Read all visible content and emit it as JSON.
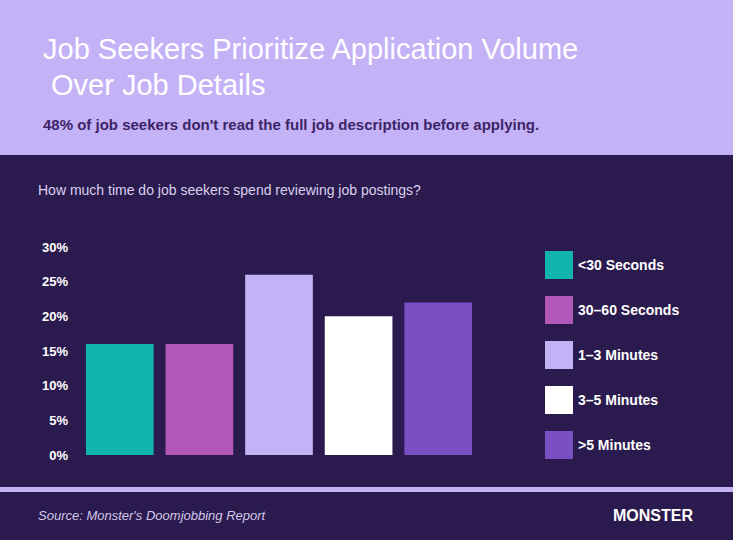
{
  "chart_data": {
    "type": "bar",
    "title": "Job Seekers Prioritize Application Volume Over Job Details",
    "subtitle": "48% of job seekers don't read the full job description before applying.",
    "annotations": [
      "How much time do job seekers spend reviewing job postings?",
      "Source: Monster's Doomjobbing Report",
      "MONSTER"
    ],
    "categories": [
      "<30 Seconds",
      "30–60 Seconds",
      "1–3 Minutes",
      "3–5 Minutes",
      ">5 Minutes"
    ],
    "values": [
      16,
      16,
      26,
      20,
      22
    ],
    "colors": [
      "#12b5ad",
      "#b158b9",
      "#c4b2f7",
      "#ffffff",
      "#7b4fc4"
    ],
    "ylim": [
      0,
      30
    ],
    "yticks": [
      {
        "value": 0,
        "label": "0%"
      },
      {
        "value": 5,
        "label": "5%"
      },
      {
        "value": 10,
        "label": "10%"
      },
      {
        "value": 15,
        "label": "15%"
      },
      {
        "value": 20,
        "label": "20%"
      },
      {
        "value": 25,
        "label": "25%"
      },
      {
        "value": 30,
        "label": "30%"
      }
    ],
    "grid": false,
    "legend": "right",
    "tick_labels": "y"
  }
}
